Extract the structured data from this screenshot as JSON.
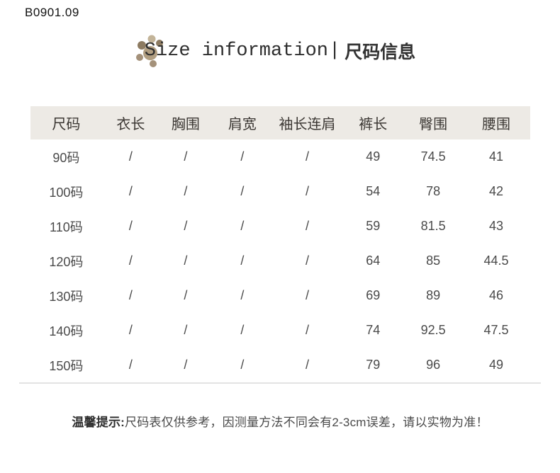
{
  "page": {
    "product_code": "B0901.09",
    "title_en": "Size information",
    "title_separator": "|",
    "title_zh": "尺码信息",
    "note_label": "温馨提示:",
    "note_text": "尺码表仅供参考，因测量方法不同会有2-3cm误差，请以实物为准！"
  },
  "table": {
    "headers": [
      "尺码",
      "衣长",
      "胸围",
      "肩宽",
      "袖长连肩",
      "裤长",
      "臀围",
      "腰围"
    ],
    "rows": [
      [
        "90码",
        "/",
        "/",
        "/",
        "/",
        "49",
        "74.5",
        "41"
      ],
      [
        "100码",
        "/",
        "/",
        "/",
        "/",
        "54",
        "78",
        "42"
      ],
      [
        "110码",
        "/",
        "/",
        "/",
        "/",
        "59",
        "81.5",
        "43"
      ],
      [
        "120码",
        "/",
        "/",
        "/",
        "/",
        "64",
        "85",
        "44.5"
      ],
      [
        "130码",
        "/",
        "/",
        "/",
        "/",
        "69",
        "89",
        "46"
      ],
      [
        "140码",
        "/",
        "/",
        "/",
        "/",
        "74",
        "92.5",
        "47.5"
      ],
      [
        "150码",
        "/",
        "/",
        "/",
        "/",
        "79",
        "96",
        "49"
      ]
    ]
  },
  "colors": {
    "header_bg": "#edeae5",
    "divider": "#e3e3e3",
    "paw_main": "#b19e81",
    "paw_dark": "#8d7b61",
    "paw_medium": "#a4917a",
    "paw_light": "#c3b499"
  },
  "icons": [
    {
      "name": "paw-print-icon",
      "description": "cluster of tan/brown dots behind title initial"
    }
  ]
}
